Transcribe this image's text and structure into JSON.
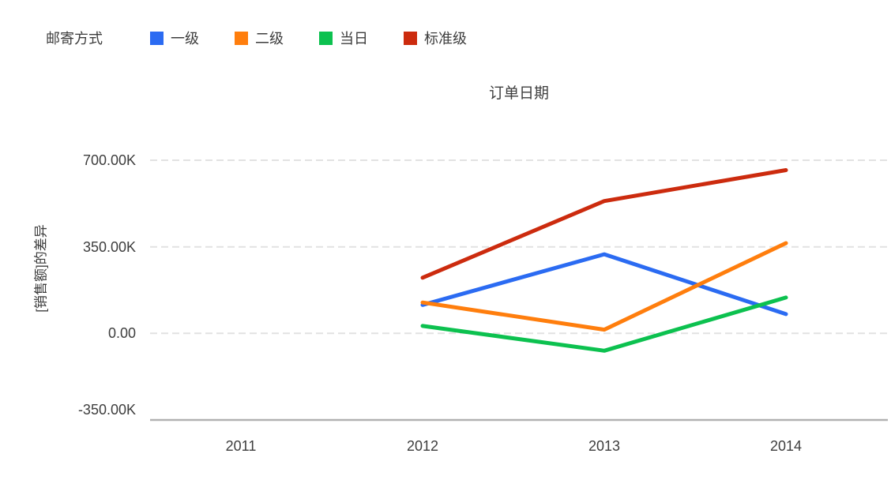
{
  "legend": {
    "title": "邮寄方式"
  },
  "chart_data": {
    "type": "line",
    "xlabel": "订单日期",
    "xlabel_position": "top",
    "ylabel": "[销售额]的差异",
    "legend_title": "邮寄方式",
    "legend_position": "top-left",
    "grid": "horizontal-dashed",
    "categories": [
      "2011",
      "2012",
      "2013",
      "2014"
    ],
    "series": [
      {
        "name": "一级",
        "color": "#2b6bf2",
        "values": [
          null,
          115000,
          320000,
          78000
        ]
      },
      {
        "name": "二级",
        "color": "#ff7e0d",
        "values": [
          null,
          125000,
          15000,
          365000
        ]
      },
      {
        "name": "当日",
        "color": "#0cc14f",
        "values": [
          null,
          30000,
          -70000,
          145000
        ]
      },
      {
        "name": "标准级",
        "color": "#cc2b0e",
        "values": [
          null,
          225000,
          535000,
          660000
        ]
      }
    ],
    "ylim": [
      -350000,
      700000
    ],
    "yticks": [
      {
        "value": 700000,
        "label": "700.00K"
      },
      {
        "value": 350000,
        "label": "350.00K"
      },
      {
        "value": 0,
        "label": "0.00"
      },
      {
        "value": -350000,
        "label": "-350.00K"
      }
    ]
  }
}
